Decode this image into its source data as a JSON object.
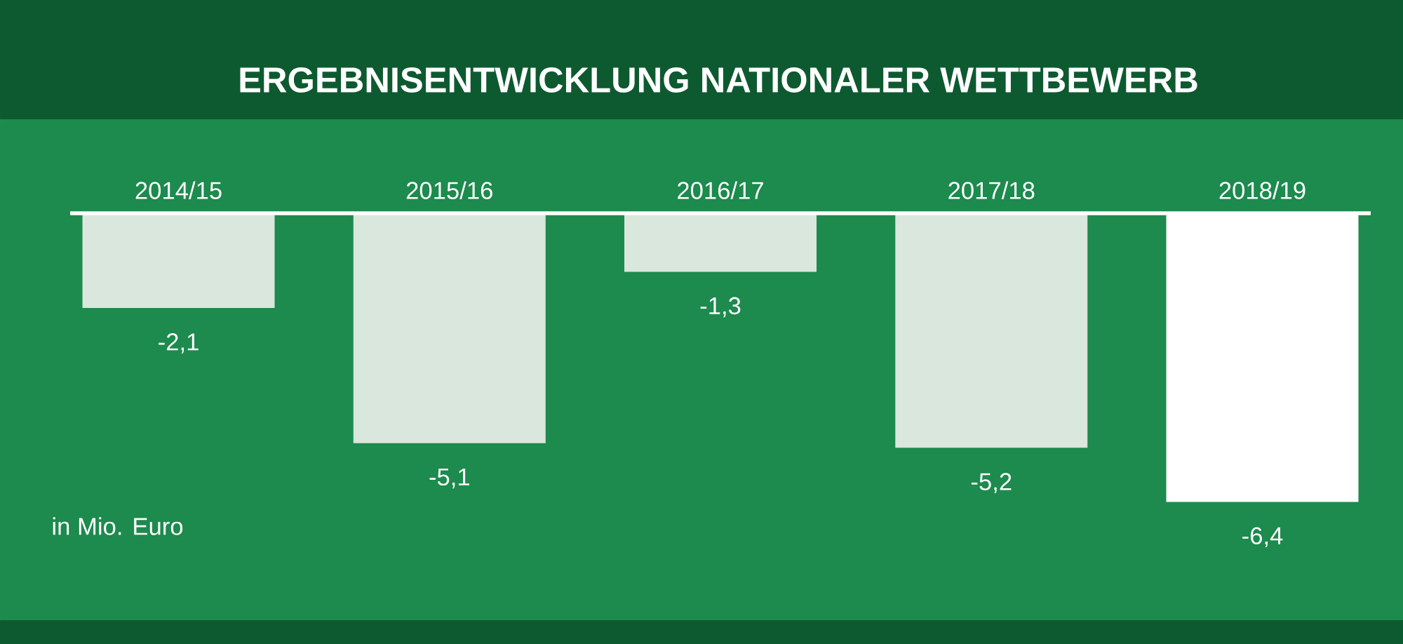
{
  "chart_data": {
    "type": "bar",
    "title": "ERGEBNISENTWICKLUNG NATIONALER WETTBEWERB",
    "categories": [
      "2014/15",
      "2015/16",
      "2016/17",
      "2017/18",
      "2018/19"
    ],
    "values": [
      -2.1,
      -5.1,
      -1.3,
      -5.2,
      -6.4
    ],
    "colors": [
      "#d9e7dc",
      "#d9e7dc",
      "#d9e7dc",
      "#d9e7dc",
      "#ffffff"
    ],
    "value_labels": [
      "-2,1",
      "-5,1",
      "-1,3",
      "-5,2",
      "-6,4"
    ],
    "annotations": [
      "in Mio. Euro"
    ]
  }
}
